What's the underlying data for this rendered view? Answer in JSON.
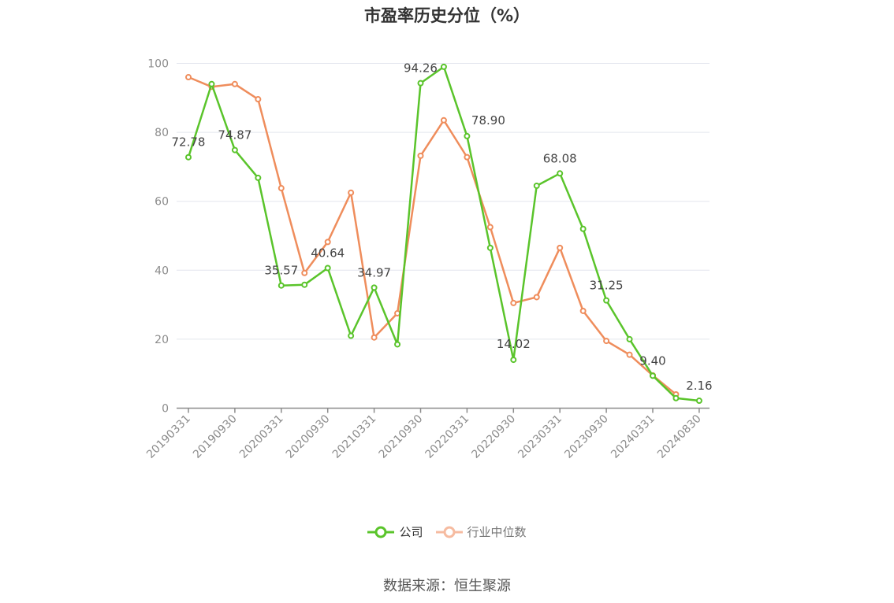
{
  "chart_data": {
    "type": "line",
    "title": "市盈率历史分位（%）",
    "x_tick_labels": [
      "20190331",
      "20190930",
      "20200331",
      "20200930",
      "20210331",
      "20210930",
      "20220331",
      "20220930",
      "20230331",
      "20230930",
      "20240331",
      "20240830"
    ],
    "x": [
      "20190331",
      "20190630",
      "20190930",
      "20191231",
      "20200331",
      "20200630",
      "20200930",
      "20201231",
      "20210331",
      "20210630",
      "20210930",
      "20211231",
      "20220331",
      "20220630",
      "20220930",
      "20221231",
      "20230331",
      "20230630",
      "20230930",
      "20231231",
      "20240331",
      "20240630",
      "20240830"
    ],
    "ylim": [
      0,
      100
    ],
    "yticks": [
      0,
      20,
      40,
      60,
      80,
      100
    ],
    "series": [
      {
        "name": "公司",
        "color": "#5ac42b",
        "values": [
          72.78,
          94,
          74.87,
          66.8,
          35.57,
          35.8,
          40.64,
          21,
          34.97,
          18.5,
          94.26,
          99,
          78.9,
          46.5,
          14.02,
          64.5,
          68.08,
          52,
          31.25,
          20,
          9.4,
          2.9,
          2.16
        ],
        "labels": [
          "72.78",
          null,
          "74.87",
          null,
          "35.57",
          null,
          "40.64",
          null,
          "34.97",
          null,
          "94.26",
          null,
          "78.90",
          null,
          "14.02",
          null,
          "68.08",
          null,
          "31.25",
          null,
          "9.40",
          null,
          "2.16"
        ]
      },
      {
        "name": "行业中位数",
        "color": "#ef8d5c",
        "values": [
          96,
          93.2,
          94,
          89.6,
          63.8,
          39.2,
          48.2,
          62.5,
          20.5,
          27.5,
          73.2,
          83.5,
          72.8,
          52.5,
          30.5,
          32.2,
          46.5,
          28.2,
          19.5,
          15.5,
          9.5,
          4.0,
          null
        ]
      }
    ],
    "legend_position": "bottom",
    "grid": true
  },
  "legend": {
    "company_label": "公司",
    "industry_label": "行业中位数"
  },
  "source": "数据来源：恒生聚源"
}
